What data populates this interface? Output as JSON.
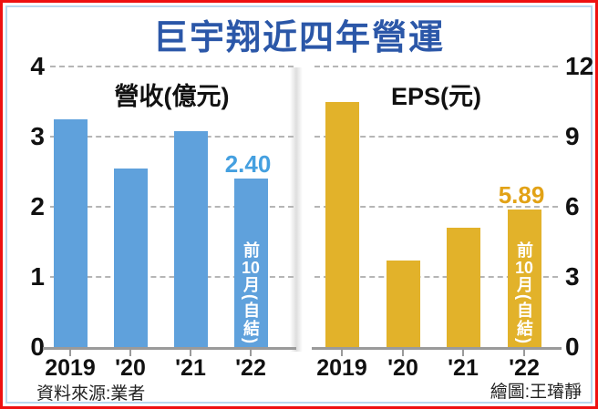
{
  "title": "巨宇翔近四年營運",
  "footer": {
    "source": "資料來源:業者",
    "credit": "繪圖:王璿靜"
  },
  "colors": {
    "outer_border": "#ee1111",
    "inner_border": "#b9d8ee",
    "title_blue": "#2b57a8",
    "gridline": "#b5b5b5",
    "axis": "#9a9a9a"
  },
  "chart_data": [
    {
      "type": "bar",
      "title": "營收(億元)",
      "categories": [
        "2019",
        "'20",
        "'21",
        "'22"
      ],
      "values": [
        3.25,
        2.55,
        3.08,
        2.4
      ],
      "ylim": [
        0,
        4
      ],
      "yticks": [
        0,
        1,
        2,
        3,
        4
      ],
      "ytick_side": "left",
      "grid": true,
      "legend": "none",
      "bar_color": "#5fa1dc",
      "highlight": {
        "index": 3,
        "value_label": "2.40",
        "label_color": "#45a0e0",
        "inner_text": "前10月(自結)"
      }
    },
    {
      "type": "bar",
      "title": "EPS(元)",
      "categories": [
        "2019",
        "'20",
        "'21",
        "'22"
      ],
      "values": [
        10.5,
        3.7,
        5.1,
        5.89
      ],
      "ylim": [
        0,
        12
      ],
      "yticks": [
        0,
        3,
        6,
        9,
        12
      ],
      "ytick_side": "right",
      "grid": true,
      "legend": "none",
      "bar_color": "#e2b22a",
      "highlight": {
        "index": 3,
        "value_label": "5.89",
        "label_color": "#e2a216",
        "inner_text": "前10月(自結)"
      }
    }
  ]
}
